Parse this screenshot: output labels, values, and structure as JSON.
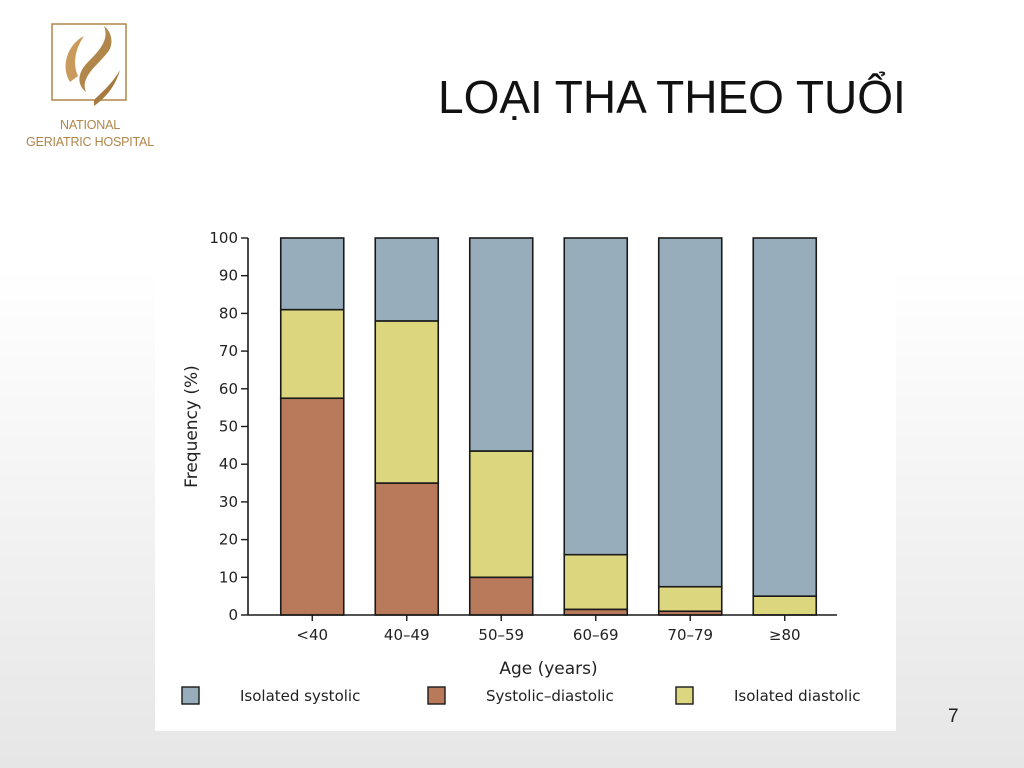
{
  "slide": {
    "title": "LOẠI THA THEO TUỔI",
    "number": "7"
  },
  "logo": {
    "line1": "NATIONAL",
    "line2": "GERIATRIC HOSPITAL",
    "color": "#b0864a"
  },
  "chart_data": {
    "type": "bar",
    "stacked": true,
    "categories": [
      "<40",
      "40–49",
      "50–59",
      "60–69",
      "70–79",
      "≥80"
    ],
    "series": [
      {
        "name": "Systolic–diastolic",
        "color": "#b97a5c",
        "values": [
          57.5,
          35,
          10,
          1.5,
          1,
          0
        ]
      },
      {
        "name": "Isolated diastolic",
        "color": "#dcd67e",
        "values": [
          23.5,
          43,
          33.5,
          14.5,
          6.5,
          5
        ]
      },
      {
        "name": "Isolated systolic",
        "color": "#97adbb",
        "values": [
          19,
          22,
          56.5,
          84,
          92.5,
          95
        ]
      }
    ],
    "legend_order": [
      "Isolated systolic",
      "Systolic–diastolic",
      "Isolated diastolic"
    ],
    "legend_position": "bottom",
    "ylabel": "Frequency (%)",
    "xlabel": "Age (years)",
    "ylim": [
      0,
      100
    ],
    "yticks": [
      0,
      10,
      20,
      30,
      40,
      50,
      60,
      70,
      80,
      90,
      100
    ],
    "grid": false
  }
}
